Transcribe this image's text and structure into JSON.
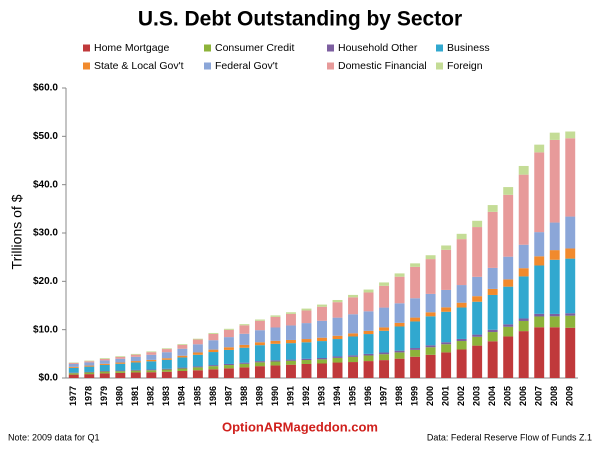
{
  "chart_data": {
    "type": "bar",
    "stacked": true,
    "title": "U.S. Debt Outstanding by Sector",
    "y_label": "Trillions of $",
    "categories": [
      "1977",
      "1978",
      "1979",
      "1980",
      "1981",
      "1982",
      "1983",
      "1984",
      "1985",
      "1986",
      "1987",
      "1988",
      "1989",
      "1990",
      "1991",
      "1992",
      "1993",
      "1994",
      "1995",
      "1996",
      "1997",
      "1998",
      "1999",
      "2000",
      "2001",
      "2002",
      "2003",
      "2004",
      "2005",
      "2006",
      "2007",
      "2008",
      "2009"
    ],
    "series": [
      {
        "name": "Home Mortgage",
        "color": "#c0393b",
        "values": [
          0.7,
          0.8,
          0.95,
          1.05,
          1.15,
          1.2,
          1.3,
          1.45,
          1.6,
          1.8,
          2.0,
          2.2,
          2.45,
          2.6,
          2.75,
          2.9,
          3.0,
          3.2,
          3.3,
          3.5,
          3.7,
          4.0,
          4.4,
          4.8,
          5.3,
          5.9,
          6.7,
          7.6,
          8.6,
          9.7,
          10.5,
          10.5,
          10.4
        ]
      },
      {
        "name": "Consumer Credit",
        "color": "#8db33a",
        "values": [
          0.3,
          0.35,
          0.38,
          0.36,
          0.38,
          0.4,
          0.45,
          0.52,
          0.6,
          0.65,
          0.68,
          0.73,
          0.79,
          0.81,
          0.8,
          0.82,
          0.86,
          0.96,
          1.07,
          1.16,
          1.22,
          1.3,
          1.42,
          1.56,
          1.68,
          1.75,
          1.83,
          1.91,
          2.0,
          2.1,
          2.23,
          2.26,
          2.5
        ]
      },
      {
        "name": "Household Other",
        "color": "#7d5fa0",
        "values": [
          0.1,
          0.1,
          0.12,
          0.13,
          0.14,
          0.15,
          0.16,
          0.18,
          0.2,
          0.22,
          0.23,
          0.24,
          0.25,
          0.26,
          0.26,
          0.27,
          0.28,
          0.3,
          0.32,
          0.33,
          0.35,
          0.36,
          0.38,
          0.4,
          0.42,
          0.43,
          0.45,
          0.47,
          0.5,
          0.52,
          0.55,
          0.5,
          0.5
        ]
      },
      {
        "name": "Business",
        "color": "#31a8cf",
        "values": [
          1.0,
          1.1,
          1.25,
          1.4,
          1.55,
          1.7,
          1.85,
          2.1,
          2.4,
          2.7,
          2.9,
          3.1,
          3.3,
          3.4,
          3.4,
          3.4,
          3.5,
          3.6,
          3.9,
          4.1,
          4.5,
          5.0,
          5.5,
          6.0,
          6.3,
          6.5,
          6.8,
          7.2,
          7.8,
          8.7,
          10.0,
          11.2,
          11.3
        ]
      },
      {
        "name": "State & Local Gov't",
        "color": "#f18a2d",
        "values": [
          0.2,
          0.22,
          0.24,
          0.26,
          0.28,
          0.3,
          0.33,
          0.36,
          0.48,
          0.5,
          0.55,
          0.58,
          0.6,
          0.63,
          0.66,
          0.67,
          0.7,
          0.68,
          0.65,
          0.66,
          0.7,
          0.75,
          0.8,
          0.84,
          0.92,
          1.0,
          1.15,
          1.25,
          1.5,
          1.7,
          1.9,
          2.0,
          2.1
        ]
      },
      {
        "name": "Federal Gov't",
        "color": "#8ba6d8",
        "values": [
          0.6,
          0.65,
          0.7,
          0.78,
          0.88,
          1.05,
          1.25,
          1.45,
          1.7,
          1.95,
          2.1,
          2.3,
          2.5,
          2.75,
          3.0,
          3.3,
          3.5,
          3.75,
          3.95,
          4.05,
          4.1,
          4.05,
          4.0,
          3.8,
          3.6,
          3.65,
          4.0,
          4.35,
          4.7,
          4.85,
          5.0,
          5.7,
          6.6
        ]
      },
      {
        "name": "Domestic Financial",
        "color": "#e79a9a",
        "values": [
          0.2,
          0.25,
          0.3,
          0.37,
          0.45,
          0.55,
          0.65,
          0.8,
          0.98,
          1.3,
          1.5,
          1.75,
          1.95,
          2.2,
          2.4,
          2.6,
          2.9,
          3.2,
          3.5,
          3.9,
          4.5,
          5.5,
          6.5,
          7.2,
          8.3,
          9.5,
          10.3,
          11.6,
          12.8,
          14.5,
          16.5,
          17.1,
          16.2
        ]
      },
      {
        "name": "Foreign",
        "color": "#c4dc96",
        "values": [
          0.1,
          0.13,
          0.16,
          0.15,
          0.15,
          0.15,
          0.15,
          0.16,
          0.17,
          0.2,
          0.22,
          0.24,
          0.26,
          0.3,
          0.33,
          0.4,
          0.45,
          0.45,
          0.5,
          0.6,
          0.7,
          0.68,
          0.72,
          0.8,
          0.9,
          1.1,
          1.3,
          1.4,
          1.6,
          1.8,
          1.6,
          1.5,
          1.4
        ]
      }
    ],
    "ylim": [
      0,
      60
    ],
    "yticks": [
      {
        "value": 0,
        "label": "$0.0"
      },
      {
        "value": 10,
        "label": "$10.0"
      },
      {
        "value": 20,
        "label": "$20.0"
      },
      {
        "value": 30,
        "label": "$30.0"
      },
      {
        "value": 40,
        "label": "$40.0"
      },
      {
        "value": 50,
        "label": "$50.0"
      },
      {
        "value": 60,
        "label": "$60.0"
      }
    ],
    "grid": false
  },
  "note": "Note: 2009 data for Q1",
  "watermark": "OptionARMageddon.com",
  "source": "Data: Federal Reserve Flow of Funds Z.1"
}
